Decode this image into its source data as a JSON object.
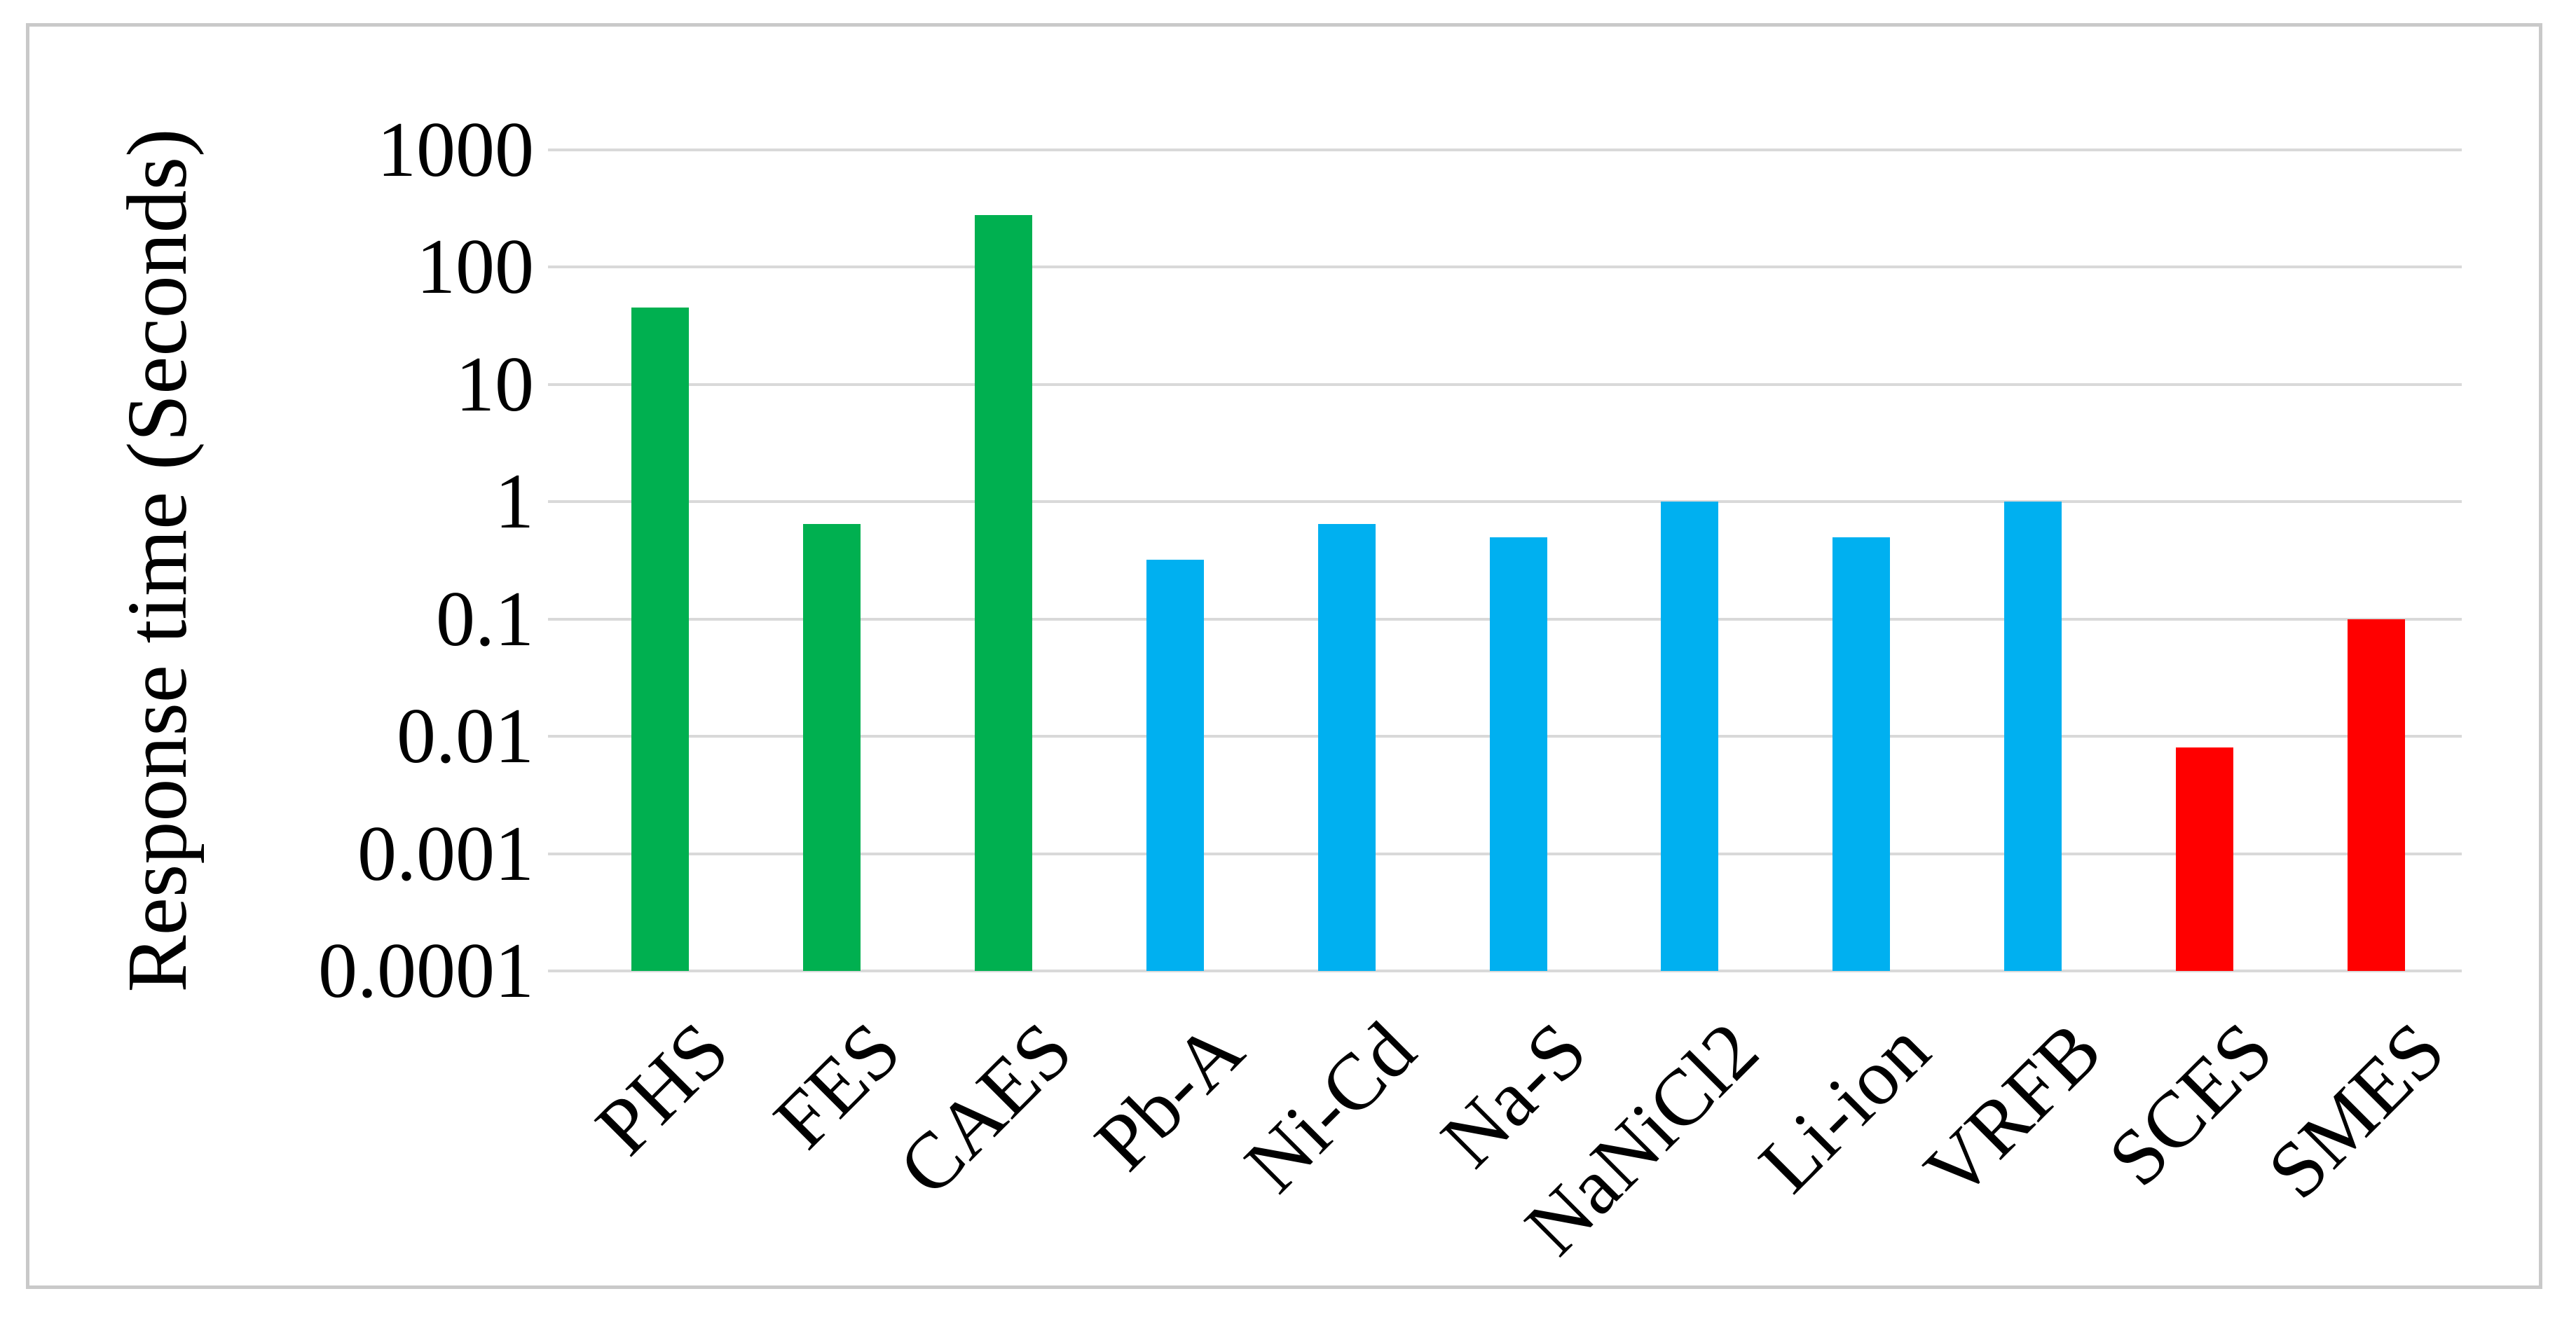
{
  "figure": {
    "background": "#ffffff",
    "border_color": "#c9c9c9"
  },
  "chart_data": {
    "type": "bar",
    "title": "",
    "xlabel": "",
    "ylabel": "Response time (Seconds)",
    "y_scale": "log10",
    "ylim": [
      0.0001,
      1000
    ],
    "y_tick_labels": [
      "1000",
      "100",
      "10",
      "1",
      "0.1",
      "0.01",
      "0.001",
      "0.0001"
    ],
    "grid": true,
    "legend_position": "none",
    "x_tick_rotation_deg": 45,
    "gridline_color": "#d9d9d9",
    "categories": [
      "PHS",
      "FES",
      "CAES",
      "Pb-A",
      "Ni-Cd",
      "Na-S",
      "NaNiCl2",
      "Li-ion",
      "VRFB",
      "SCES",
      "SMES"
    ],
    "series": [
      {
        "name": "Response time (Seconds)",
        "values": [
          45,
          0.65,
          280,
          0.32,
          0.65,
          0.5,
          1,
          0.5,
          1,
          0.008,
          0.1
        ]
      }
    ],
    "bar_colors": [
      "#00b050",
      "#00b050",
      "#00b050",
      "#00b0f0",
      "#00b0f0",
      "#00b0f0",
      "#00b0f0",
      "#00b0f0",
      "#00b0f0",
      "#ff0000",
      "#ff0000"
    ],
    "color_groups": {
      "green_mechanical": "#00b050",
      "blue_electrochemical": "#00b0f0",
      "red_electrical": "#ff0000"
    }
  }
}
